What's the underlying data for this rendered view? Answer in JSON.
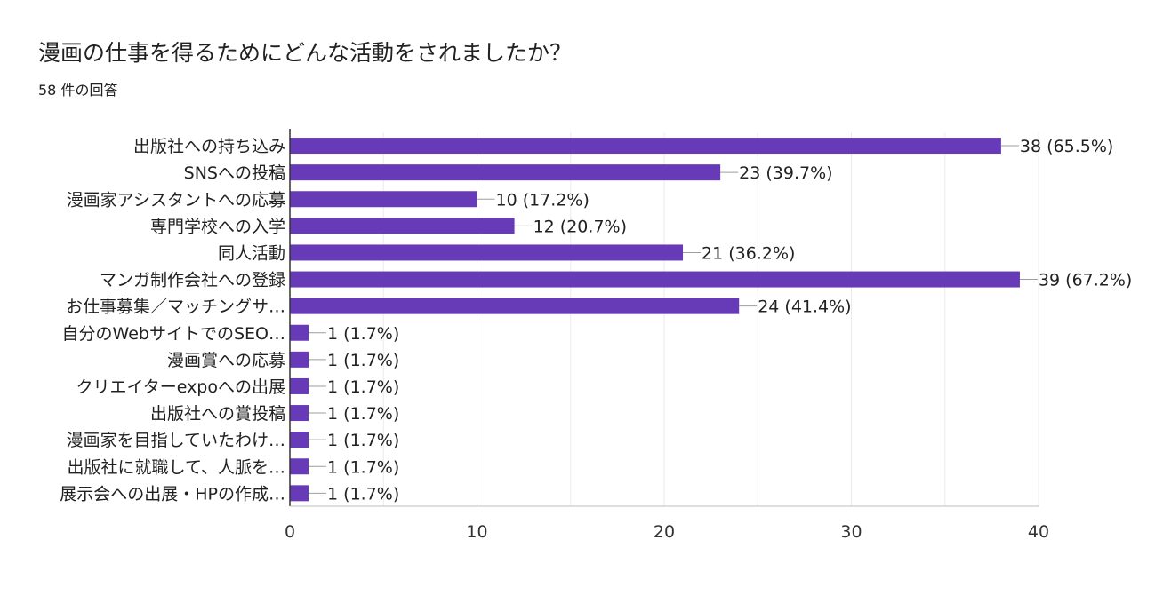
{
  "title": "漫画の仕事を得るためにどんな活動をされましたか？",
  "subtitle": "58 件の回答",
  "colors": {
    "bar": "#673ab7",
    "grid": "#ebebeb",
    "axis": "#333333",
    "text": "#212121"
  },
  "chart_data": {
    "type": "bar",
    "orientation": "horizontal",
    "categories": [
      "出版社への持ち込み",
      "SNSへの投稿",
      "漫画家アシスタントへの応募",
      "専門学校への入学",
      "同人活動",
      "マンガ制作会社への登録",
      "お仕事募集／マッチングサ…",
      "自分のWebサイトでのSEO…",
      "漫画賞への応募",
      "クリエイターexpoへの出展",
      "出版社への賞投稿",
      "漫画家を目指していたわけ…",
      "出版社に就職して、人脈を…",
      "展示会への出展・HPの作成…"
    ],
    "values": [
      38,
      23,
      10,
      12,
      21,
      39,
      24,
      1,
      1,
      1,
      1,
      1,
      1,
      1
    ],
    "data_labels": [
      "38 (65.5%)",
      "23 (39.7%)",
      "10 (17.2%)",
      "12 (20.7%)",
      "21 (36.2%)",
      "39 (67.2%)",
      "24 (41.4%)",
      "1 (1.7%)",
      "1 (1.7%)",
      "1 (1.7%)",
      "1 (1.7%)",
      "1 (1.7%)",
      "1 (1.7%)",
      "1 (1.7%)"
    ],
    "xlim": [
      0,
      40
    ],
    "xticks": [
      0,
      10,
      20,
      30,
      40
    ],
    "grid": true,
    "legend": "none"
  }
}
